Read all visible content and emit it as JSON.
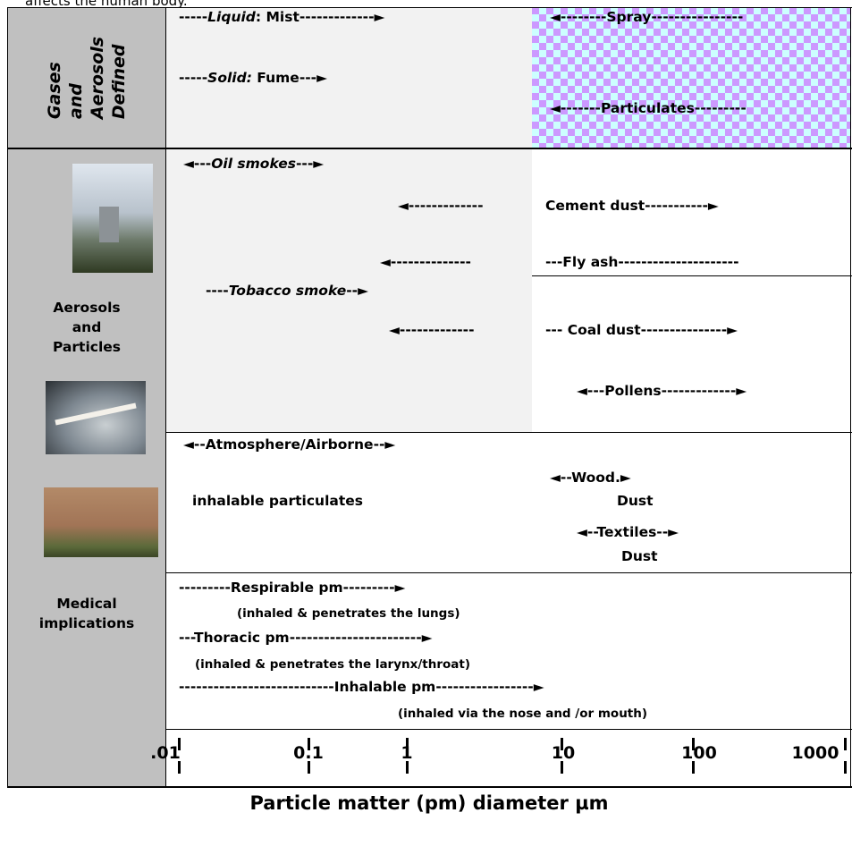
{
  "header_text": "affects the human body.",
  "side_labels": {
    "defined": [
      "Gases",
      "and",
      "Aerosols",
      "Defined"
    ],
    "aerosols": [
      "Aerosols",
      "and",
      "Particles"
    ],
    "medical": [
      "Medical",
      "implications"
    ]
  },
  "cells": [
    {
      "parts": [
        "-----",
        "Liquid",
        ": Mist-------------►"
      ]
    },
    {
      "parts": [
        "-----",
        "Solid:",
        " Fume---►"
      ]
    },
    {
      "parts": [
        "◄--------Spray----------------"
      ]
    },
    {
      "parts": [
        "◄-------Particulates---------"
      ]
    },
    {
      "parts": [
        "◄---",
        "Oil smokes",
        "---►"
      ]
    },
    {
      "parts": [
        "◄-------------"
      ]
    },
    {
      "parts": [
        "Cement dust-----------►"
      ]
    },
    {
      "parts": [
        "◄--------------"
      ]
    },
    {
      "parts": [
        "---Fly ash---------------------"
      ]
    },
    {
      "parts": [
        "----",
        "Tobacco smoke",
        "--►"
      ]
    },
    {
      "parts": [
        "◄-------------"
      ]
    },
    {
      "parts": [
        "--- Coal dust---------------►"
      ]
    },
    {
      "parts": [
        "◄---Pollens-------------►"
      ]
    },
    {
      "parts": [
        "◄--Atmosphere/Airborne--►"
      ]
    },
    {
      "parts": [
        "inhalable particulates"
      ]
    },
    {
      "parts": [
        "◄--Wood.►"
      ]
    },
    {
      "parts": [
        "Dust"
      ]
    },
    {
      "parts": [
        "◄--Textiles--►"
      ]
    },
    {
      "parts": [
        "Dust"
      ]
    },
    {
      "parts": [
        "---------Respirable pm---------►"
      ]
    },
    {
      "parts": [
        "(inhaled & penetrates the lungs)"
      ]
    },
    {
      "parts": [
        "---Thoracic pm-----------------------►"
      ]
    },
    {
      "parts": [
        "(inhaled  & penetrates the larynx/throat)"
      ]
    },
    {
      "parts": [
        "---------------------------Inhalable pm-----------------►"
      ]
    },
    {
      "parts": [
        "(inhaled via the nose and /or mouth)"
      ]
    }
  ],
  "axis_labels": [
    ".01",
    "0.1",
    "1",
    "10",
    "100",
    "1000"
  ],
  "axis_title": "Particle matter (pm) diameter µm"
}
